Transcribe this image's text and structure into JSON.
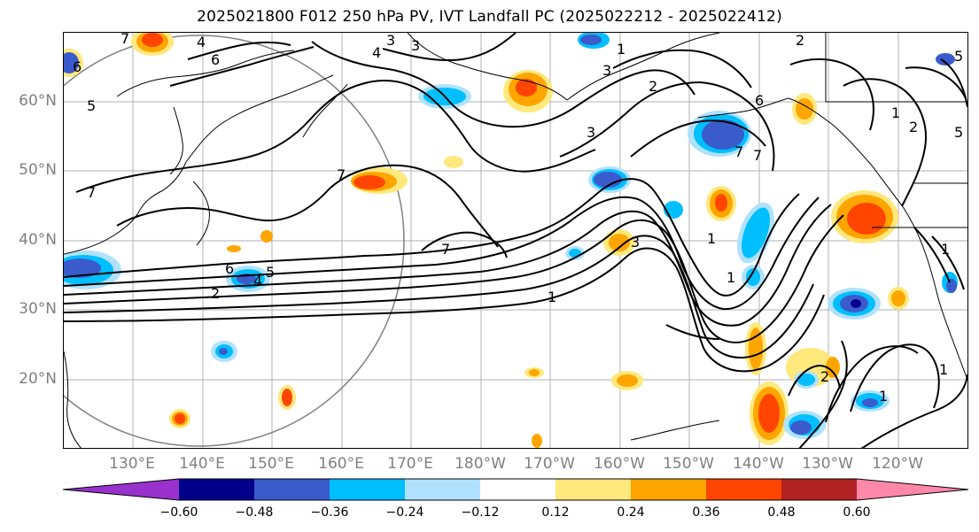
{
  "title": "2025021800 F012 250 hPa PV, IVT Landfall PC (2025022212 - 2025022412)",
  "lat_labels": [
    "60°N",
    "50°N",
    "40°N",
    "30°N",
    "20°N"
  ],
  "lon_labels": [
    "130°E",
    "140°E",
    "150°E",
    "160°E",
    "170°E",
    "180°W",
    "170°W",
    "160°W",
    "150°W",
    "140°W",
    "130°W",
    "120°W"
  ],
  "contour_labels": [
    "4",
    "6",
    "3",
    "4",
    "2",
    "6",
    "3",
    "1",
    "7",
    "5",
    "7",
    "7",
    "5",
    "4",
    "6",
    "2",
    "7",
    "3",
    "1",
    "1",
    "7",
    "1",
    "1",
    "2",
    "2",
    "5",
    "1",
    "1",
    "6",
    "3",
    "2",
    "3",
    "1",
    "7",
    "5"
  ],
  "colorbar": {
    "ticks": [
      "−0.60",
      "−0.48",
      "−0.36",
      "−0.24",
      "−0.12",
      "0.12",
      "0.24",
      "0.36",
      "0.48",
      "0.60"
    ],
    "colors": [
      "#9932cc",
      "#00008b",
      "#3a5bcc",
      "#00bfff",
      "#b0e2ff",
      "#ffffff",
      "#ffe87c",
      "#ffa500",
      "#ff4500",
      "#b22222",
      "#ff88aa"
    ]
  }
}
